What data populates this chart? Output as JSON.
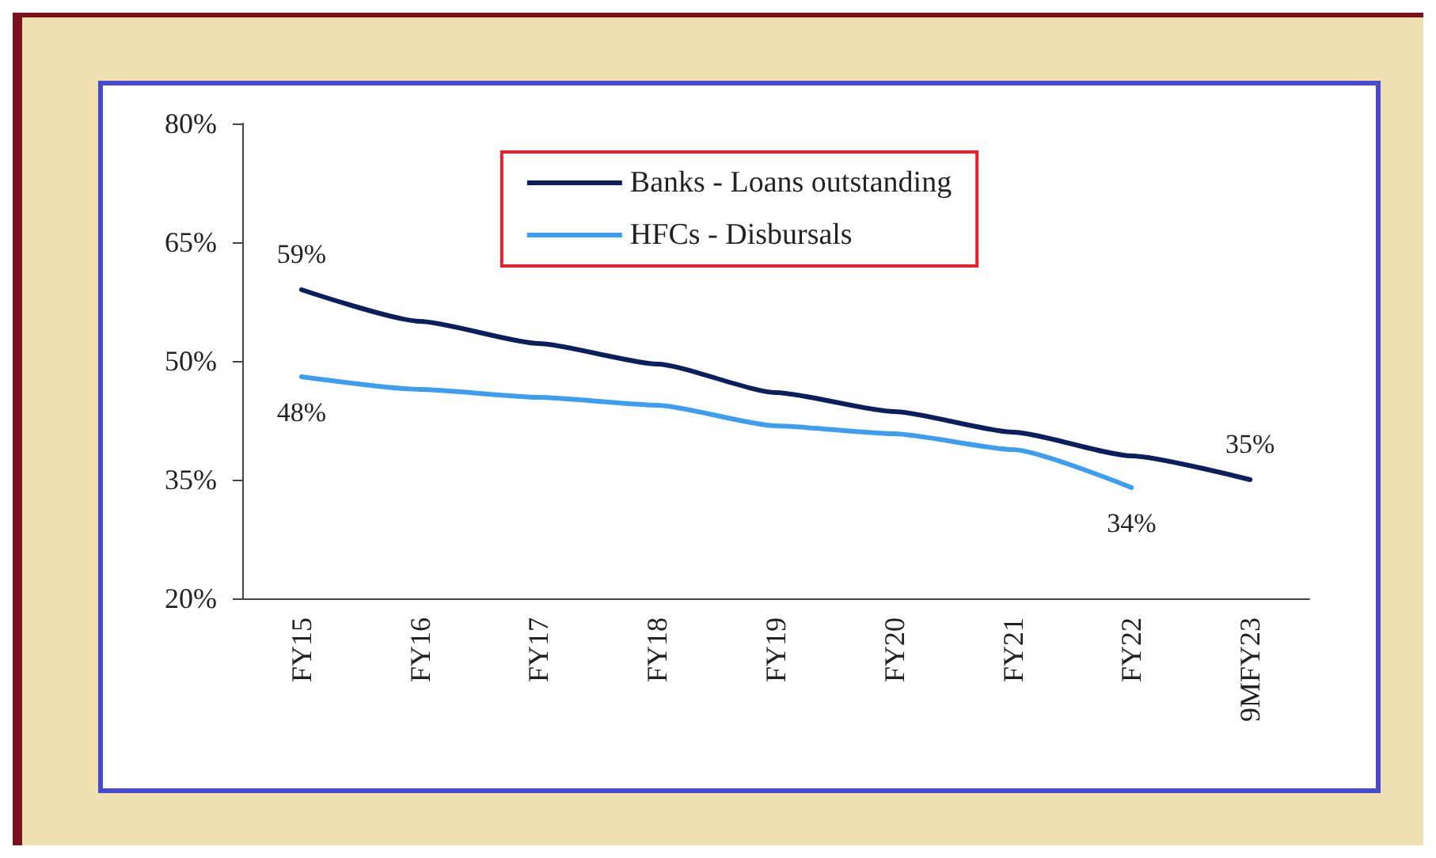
{
  "chart_data": {
    "type": "line",
    "categories": [
      "FY15",
      "FY16",
      "FY17",
      "FY18",
      "FY19",
      "FY20",
      "FY21",
      "FY22",
      "9MFY23"
    ],
    "series": [
      {
        "name": "Banks - Loans outstanding",
        "color": "#0a1f5c",
        "values": [
          59,
          55,
          52.2,
          49.6,
          46,
          43.6,
          41,
          38,
          35
        ],
        "value_labels": [
          "59%",
          null,
          null,
          null,
          null,
          null,
          null,
          null,
          "35%"
        ]
      },
      {
        "name": "HFCs - Disbursals",
        "color": "#3d9df0",
        "values": [
          48,
          46.4,
          45.4,
          44.4,
          41.8,
          40.8,
          38.8,
          34,
          null
        ],
        "value_labels": [
          "48%",
          null,
          null,
          null,
          null,
          null,
          null,
          "34%",
          null
        ]
      }
    ],
    "ylim": [
      20,
      80
    ],
    "yticks": [
      {
        "value": 20,
        "label": "20%"
      },
      {
        "value": 35,
        "label": "35%"
      },
      {
        "value": 50,
        "label": "50%"
      },
      {
        "value": 65,
        "label": "65%"
      },
      {
        "value": 80,
        "label": "80%"
      }
    ],
    "grid": false,
    "legend": "top",
    "marker": "none",
    "line_style": "solid"
  }
}
